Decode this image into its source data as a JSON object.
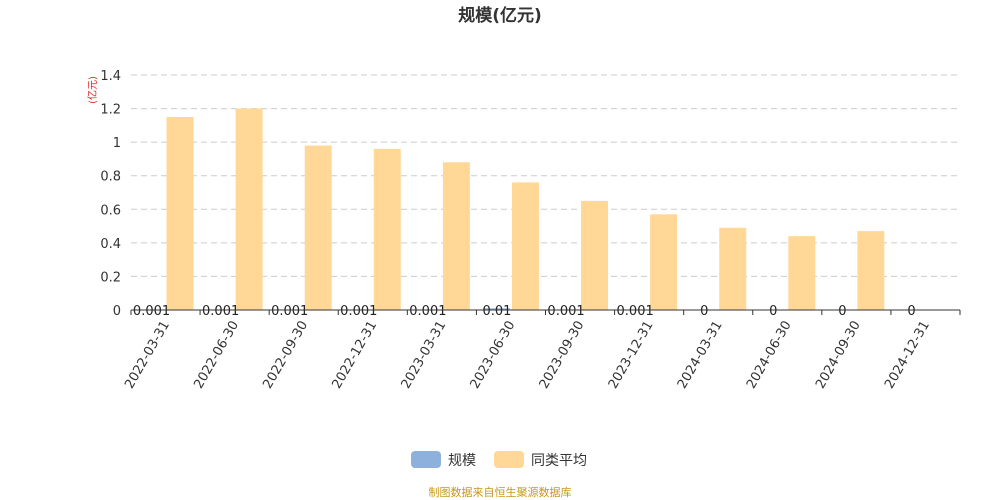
{
  "chart_data": {
    "type": "bar",
    "title": "规模(亿元)",
    "ylabel": "(亿元)",
    "ylim": [
      0,
      1.4
    ],
    "yticks": [
      0,
      0.2,
      0.4,
      0.6,
      0.8,
      1,
      1.2,
      1.4
    ],
    "grid": "horizontal dashed",
    "legend_position": "bottom",
    "categories": [
      "2022-03-31",
      "2022-06-30",
      "2022-09-30",
      "2022-12-31",
      "2023-03-31",
      "2023-06-30",
      "2023-09-30",
      "2023-12-31",
      "2024-03-31",
      "2024-06-30",
      "2024-09-30",
      "2024-12-31"
    ],
    "series": [
      {
        "name": "规模",
        "color": "#8eb0dc",
        "values": [
          0.001,
          0.001,
          0.001,
          0.001,
          0.001,
          0.01,
          0.001,
          0.001,
          0,
          0,
          0,
          0
        ],
        "labels": [
          "0.001",
          "0.001",
          "0.001",
          "0.001",
          "0.001",
          "0.01",
          "0.001",
          "0.001",
          "0",
          "0",
          "0",
          "0"
        ]
      },
      {
        "name": "同类平均",
        "color": "#ffd898",
        "values": [
          1.15,
          1.2,
          0.98,
          0.96,
          0.88,
          0.76,
          0.65,
          0.57,
          0.49,
          0.44,
          0.47,
          null
        ]
      }
    ],
    "source": "制图数据来自恒生聚源数据库"
  }
}
